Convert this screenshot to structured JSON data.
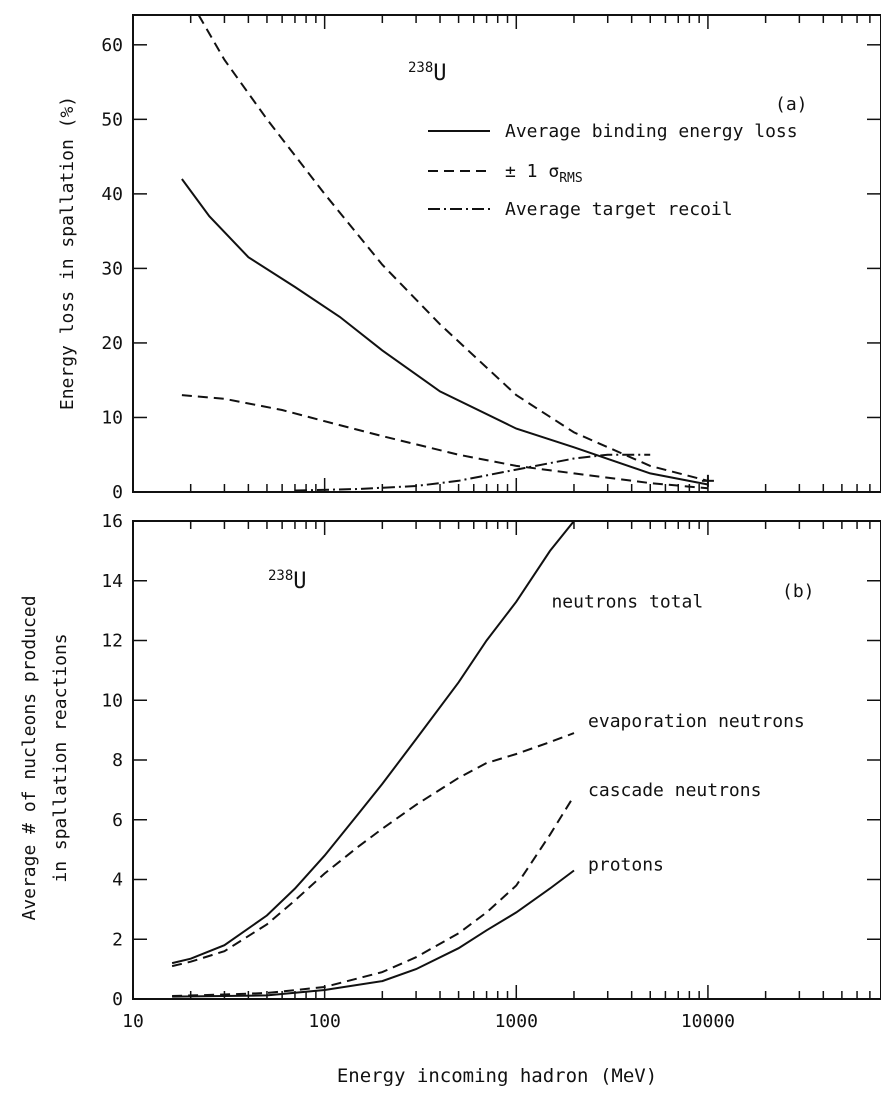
{
  "chart_data": [
    {
      "type": "line",
      "panel_label": "(a)",
      "element": "238U",
      "element_mass": "238",
      "element_symbol": "U",
      "xlabel": "",
      "ylabel": "Energy loss in spallation (%)",
      "xscale": "log",
      "xlim": [
        10,
        80000
      ],
      "ylim": [
        0,
        64
      ],
      "yticks": [
        0,
        10,
        20,
        30,
        40,
        50,
        60
      ],
      "ytick_labels": [
        "0",
        "10",
        "20",
        "30",
        "40",
        "50",
        "60"
      ],
      "legend_placement": "top-right",
      "legend": [
        {
          "label": "Average binding energy loss",
          "style": "solid"
        },
        {
          "label_prefix": "± 1 σ",
          "label_subscript": "RMS",
          "style": "dashed"
        },
        {
          "label": "Average target recoil",
          "style": "dashdot"
        }
      ],
      "series": [
        {
          "name": "Average binding energy loss",
          "style": "solid",
          "x": [
            18,
            25,
            40,
            70,
            120,
            200,
            400,
            1000,
            2000,
            5000,
            10000
          ],
          "y": [
            42,
            37,
            31.5,
            27.5,
            23.5,
            19,
            13.5,
            8.5,
            6,
            2.5,
            1
          ]
        },
        {
          "name": "± 1 σ RMS upper",
          "style": "dashed",
          "x": [
            22,
            30,
            50,
            100,
            200,
            400,
            1000,
            2000,
            5000,
            10000
          ],
          "y": [
            64,
            58,
            50,
            40,
            30.5,
            22.5,
            13,
            8,
            3.5,
            1.5
          ]
        },
        {
          "name": "± 1 σ RMS lower",
          "style": "dashed",
          "x": [
            18,
            30,
            60,
            100,
            200,
            500,
            1000,
            2000,
            5000,
            10000
          ],
          "y": [
            13,
            12.5,
            11,
            9.5,
            7.5,
            5,
            3.5,
            2.5,
            1.2,
            0.5
          ]
        },
        {
          "name": "Average target recoil",
          "style": "dashdot",
          "x": [
            70,
            150,
            300,
            500,
            1000,
            2000,
            3000,
            5000
          ],
          "y": [
            0.2,
            0.4,
            0.8,
            1.5,
            3,
            4.5,
            5,
            5
          ]
        }
      ]
    },
    {
      "type": "line",
      "panel_label": "(b)",
      "element": "238U",
      "element_mass": "238",
      "element_symbol": "U",
      "xlabel": "Energy incoming hadron (MeV)",
      "ylabel_line1": "Average # of nucleons produced",
      "ylabel_line2": "in spallation reactions",
      "xscale": "log",
      "xlim": [
        10,
        80000
      ],
      "ylim": [
        0,
        16
      ],
      "xticks": [
        10,
        100,
        1000,
        10000
      ],
      "xtick_labels": [
        "10",
        "100",
        "1000",
        "10000"
      ],
      "yticks": [
        0,
        2,
        4,
        6,
        8,
        10,
        12,
        14,
        16
      ],
      "ytick_labels": [
        "0",
        "2",
        "4",
        "6",
        "8",
        "10",
        "12",
        "14",
        "16"
      ],
      "series": [
        {
          "name": "neutrons total",
          "style": "solid",
          "x": [
            16,
            20,
            30,
            50,
            70,
            100,
            150,
            200,
            300,
            500,
            700,
            1000,
            1500,
            2000
          ],
          "y": [
            1.2,
            1.35,
            1.8,
            2.8,
            3.7,
            4.8,
            6.2,
            7.2,
            8.7,
            10.6,
            12,
            13.3,
            15,
            16
          ]
        },
        {
          "name": "evaporation neutrons",
          "style": "dashed",
          "x": [
            16,
            20,
            30,
            50,
            70,
            100,
            150,
            200,
            300,
            500,
            700,
            1000,
            1500,
            2000
          ],
          "y": [
            1.1,
            1.25,
            1.6,
            2.5,
            3.3,
            4.2,
            5.1,
            5.7,
            6.5,
            7.4,
            7.9,
            8.2,
            8.6,
            8.9
          ]
        },
        {
          "name": "cascade neutrons",
          "style": "dashed",
          "x": [
            16,
            30,
            50,
            100,
            200,
            300,
            500,
            700,
            1000,
            1500,
            2000
          ],
          "y": [
            0.1,
            0.15,
            0.2,
            0.4,
            0.9,
            1.4,
            2.2,
            2.9,
            3.8,
            5.5,
            6.8
          ]
        },
        {
          "name": "protons",
          "style": "solid",
          "x": [
            16,
            30,
            50,
            100,
            200,
            300,
            500,
            700,
            1000,
            1500,
            2000
          ],
          "y": [
            0.08,
            0.1,
            0.12,
            0.3,
            0.6,
            1.0,
            1.7,
            2.3,
            2.9,
            3.7,
            4.3
          ]
        }
      ]
    }
  ]
}
